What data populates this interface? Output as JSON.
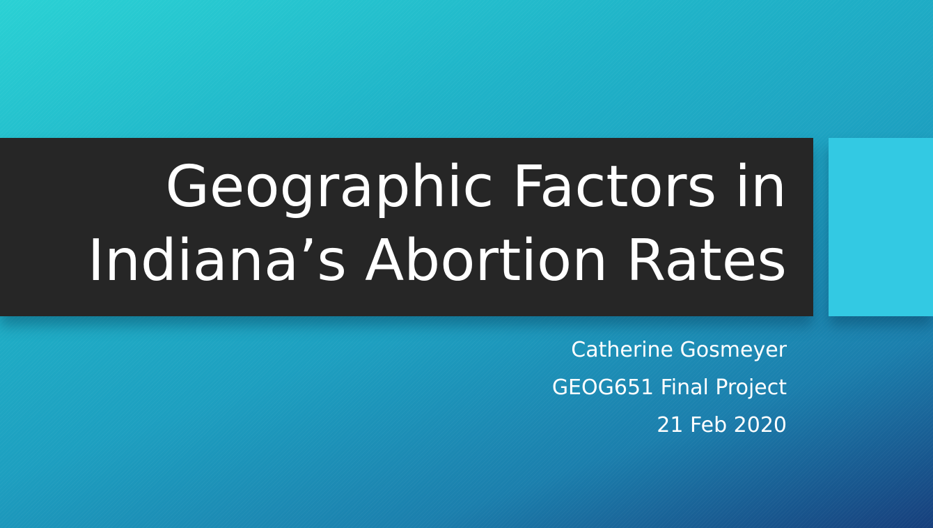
{
  "slide": {
    "title_lines": [
      "Geographic Factors in",
      "Indiana’s Abortion Rates"
    ],
    "subtitle_lines": [
      "Catherine Gosmeyer",
      "GEOG651 Final Project",
      "21 Feb 2020"
    ]
  },
  "colors": {
    "background_gradient_start": "#2ad1d4",
    "background_gradient_end": "#173f7c",
    "title_band": "#262626",
    "accent_block": "#33c9e3",
    "text": "#ffffff"
  }
}
